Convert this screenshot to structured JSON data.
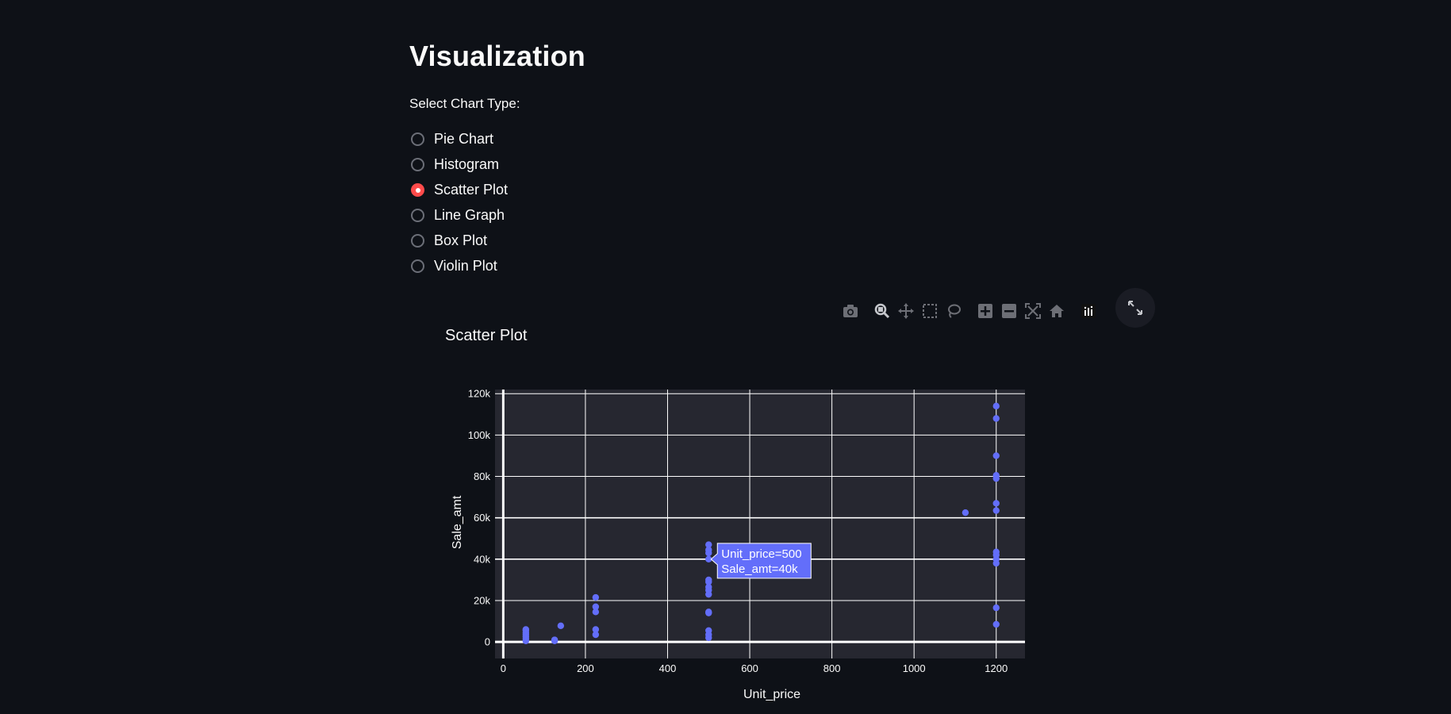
{
  "page": {
    "title": "Visualization"
  },
  "chart_selector": {
    "label": "Select Chart Type:",
    "options": [
      {
        "label": "Pie Chart",
        "selected": false
      },
      {
        "label": "Histogram",
        "selected": false
      },
      {
        "label": "Scatter Plot",
        "selected": true
      },
      {
        "label": "Line Graph",
        "selected": false
      },
      {
        "label": "Box Plot",
        "selected": false
      },
      {
        "label": "Violin Plot",
        "selected": false
      }
    ]
  },
  "modebar": {
    "buttons": [
      "camera-icon",
      "zoom-icon",
      "pan-icon",
      "box-select-icon",
      "lasso-select-icon",
      "zoom-in-icon",
      "zoom-out-icon",
      "autoscale-icon",
      "reset-axes-icon",
      "plotly-logo-icon"
    ]
  },
  "colors": {
    "background": "#0e1117",
    "plot_bg": "#262730",
    "marker": "#636efa",
    "accent": "#ff4b4b",
    "grid": "#ffffff"
  },
  "chart_data": {
    "type": "scatter",
    "title": "Scatter Plot",
    "xlabel": "Unit_price",
    "ylabel": "Sale_amt",
    "xlim": [
      -20,
      1270
    ],
    "ylim": [
      -8000,
      122000
    ],
    "x_ticks": [
      0,
      200,
      400,
      600,
      800,
      1000,
      1200
    ],
    "x_tick_labels": [
      "0",
      "200",
      "400",
      "600",
      "800",
      "1000",
      "1200"
    ],
    "y_ticks": [
      0,
      20000,
      40000,
      60000,
      80000,
      100000,
      120000
    ],
    "y_tick_labels": [
      "0",
      "20k",
      "40k",
      "60k",
      "80k",
      "100k",
      "120k"
    ],
    "points": [
      {
        "x": 55,
        "y": 500
      },
      {
        "x": 55,
        "y": 1500
      },
      {
        "x": 55,
        "y": 2500
      },
      {
        "x": 55,
        "y": 3500
      },
      {
        "x": 55,
        "y": 4500
      },
      {
        "x": 55,
        "y": 5500
      },
      {
        "x": 55,
        "y": 6000
      },
      {
        "x": 125,
        "y": 500
      },
      {
        "x": 125,
        "y": 1000
      },
      {
        "x": 140,
        "y": 7800
      },
      {
        "x": 225,
        "y": 3500
      },
      {
        "x": 225,
        "y": 6000
      },
      {
        "x": 225,
        "y": 14500
      },
      {
        "x": 225,
        "y": 17000
      },
      {
        "x": 225,
        "y": 21500
      },
      {
        "x": 500,
        "y": 2000
      },
      {
        "x": 500,
        "y": 3500
      },
      {
        "x": 500,
        "y": 5500
      },
      {
        "x": 500,
        "y": 14000
      },
      {
        "x": 500,
        "y": 14500
      },
      {
        "x": 500,
        "y": 23000
      },
      {
        "x": 500,
        "y": 25000
      },
      {
        "x": 500,
        "y": 26500
      },
      {
        "x": 500,
        "y": 29000
      },
      {
        "x": 500,
        "y": 30000
      },
      {
        "x": 500,
        "y": 40000
      },
      {
        "x": 500,
        "y": 43000
      },
      {
        "x": 500,
        "y": 44500
      },
      {
        "x": 500,
        "y": 47000
      },
      {
        "x": 1125,
        "y": 62500
      },
      {
        "x": 1200,
        "y": 8500
      },
      {
        "x": 1200,
        "y": 16500
      },
      {
        "x": 1200,
        "y": 38000
      },
      {
        "x": 1200,
        "y": 40000
      },
      {
        "x": 1200,
        "y": 42000
      },
      {
        "x": 1200,
        "y": 43500
      },
      {
        "x": 1200,
        "y": 63500
      },
      {
        "x": 1200,
        "y": 67000
      },
      {
        "x": 1200,
        "y": 79000
      },
      {
        "x": 1200,
        "y": 80500
      },
      {
        "x": 1200,
        "y": 90000
      },
      {
        "x": 1200,
        "y": 108000
      },
      {
        "x": 1200,
        "y": 114000
      }
    ],
    "hover": {
      "x": 500,
      "y": 40000,
      "line1": "Unit_price=500",
      "line2": "Sale_amt=40k"
    }
  }
}
